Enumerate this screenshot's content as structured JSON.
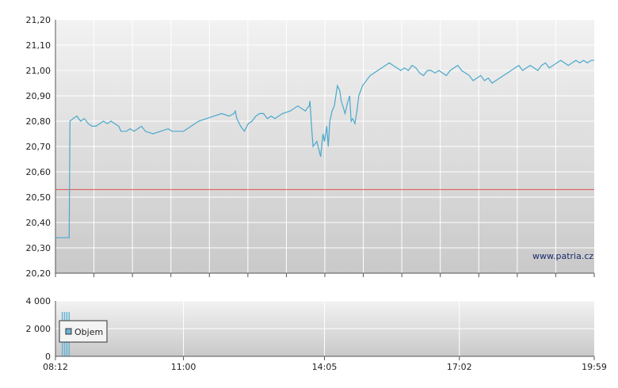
{
  "watermark": "www.patria.cz",
  "colors": {
    "price_line": "#4aa8cc",
    "reference_line": "#e05050",
    "grid": "#ffffff",
    "panel_top": "#f2f2f2",
    "panel_bottom": "#c9c9c9",
    "volume_bar": "#6ab4d6"
  },
  "chart_data": [
    {
      "type": "line",
      "y_tick_labels": [
        "20,20",
        "20,30",
        "20,40",
        "20,50",
        "20,60",
        "20,70",
        "20,80",
        "20,90",
        "21,00",
        "21,10",
        "21,20"
      ],
      "ylim": [
        20.2,
        21.2
      ],
      "xlim_minutes": [
        492,
        1199
      ],
      "reference_value": 20.53,
      "series": [
        {
          "x_minutes": [
            492,
            510,
            511,
            515,
            520,
            525,
            530,
            535,
            540,
            545,
            550,
            555,
            560,
            565,
            570,
            575,
            578,
            580,
            585,
            590,
            595,
            600,
            605,
            610,
            620,
            630,
            640,
            645,
            650,
            660,
            670,
            680,
            690,
            700,
            710,
            720,
            726,
            728,
            730,
            735,
            740,
            745,
            750,
            755,
            760,
            765,
            770,
            775,
            780,
            790,
            800,
            810,
            820,
            822,
            825,
            826,
            828,
            830,
            835,
            840,
            843,
            845,
            848,
            850,
            852,
            855,
            858,
            860,
            862,
            865,
            867,
            870,
            872,
            875,
            878,
            880,
            882,
            885,
            888,
            890,
            895,
            900,
            905,
            910,
            915,
            920,
            925,
            930,
            935,
            940,
            945,
            950,
            955,
            960,
            965,
            970,
            975,
            980,
            985,
            990,
            995,
            1000,
            1005,
            1010,
            1015,
            1020,
            1025,
            1030,
            1035,
            1040,
            1045,
            1050,
            1055,
            1060,
            1065,
            1070,
            1075,
            1080,
            1085,
            1090,
            1095,
            1100,
            1105,
            1110,
            1115,
            1120,
            1125,
            1130,
            1135,
            1140,
            1145,
            1150,
            1155,
            1160,
            1165,
            1170,
            1175,
            1180,
            1185,
            1190,
            1195,
            1199
          ],
          "values": [
            20.34,
            20.34,
            20.8,
            20.81,
            20.82,
            20.8,
            20.81,
            20.79,
            20.78,
            20.78,
            20.79,
            20.8,
            20.79,
            20.8,
            20.79,
            20.78,
            20.76,
            20.76,
            20.76,
            20.77,
            20.76,
            20.77,
            20.78,
            20.76,
            20.75,
            20.76,
            20.77,
            20.76,
            20.76,
            20.76,
            20.78,
            20.8,
            20.81,
            20.82,
            20.83,
            20.82,
            20.83,
            20.84,
            20.81,
            20.78,
            20.76,
            20.79,
            20.8,
            20.82,
            20.83,
            20.83,
            20.81,
            20.82,
            20.81,
            20.83,
            20.84,
            20.86,
            20.84,
            20.85,
            20.86,
            20.88,
            20.78,
            20.7,
            20.72,
            20.66,
            20.75,
            20.72,
            20.78,
            20.7,
            20.8,
            20.84,
            20.86,
            20.9,
            20.94,
            20.92,
            20.88,
            20.85,
            20.83,
            20.87,
            20.9,
            20.8,
            20.81,
            20.79,
            20.85,
            20.9,
            20.94,
            20.96,
            20.98,
            20.99,
            21.0,
            21.01,
            21.02,
            21.03,
            21.02,
            21.01,
            21.0,
            21.01,
            21.0,
            21.02,
            21.01,
            20.99,
            20.98,
            21.0,
            21.0,
            20.99,
            21.0,
            20.99,
            20.98,
            21.0,
            21.01,
            21.02,
            21.0,
            20.99,
            20.98,
            20.96,
            20.97,
            20.98,
            20.96,
            20.97,
            20.95,
            20.96,
            20.97,
            20.98,
            20.99,
            21.0,
            21.01,
            21.02,
            21.0,
            21.01,
            21.02,
            21.01,
            21.0,
            21.02,
            21.03,
            21.01,
            21.02,
            21.03,
            21.04,
            21.03,
            21.02,
            21.03,
            21.04,
            21.03,
            21.04,
            21.03,
            21.04,
            21.04
          ]
        }
      ]
    },
    {
      "type": "bar",
      "y_tick_labels": [
        "0",
        "2 000",
        "4 000"
      ],
      "ylim": [
        0,
        4000
      ],
      "x_tick_labels": [
        "08:12",
        "11:00",
        "14:05",
        "17:02",
        "19:59"
      ],
      "x_tick_minutes": [
        492,
        660,
        845,
        1022,
        1199
      ],
      "legend": "Objem",
      "legend_position": "top-left",
      "bars_x_minutes": [
        501,
        504,
        507,
        510
      ],
      "bars_values": [
        3200,
        3200,
        3200,
        3200
      ]
    }
  ]
}
